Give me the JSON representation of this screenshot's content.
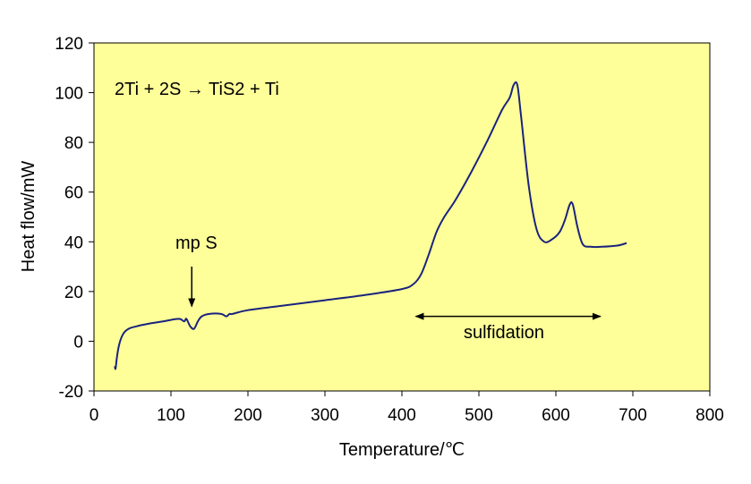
{
  "chart_data": {
    "type": "line",
    "xlabel": "Temperature/℃",
    "ylabel": "Heat flow/mW",
    "xlim": [
      0,
      800
    ],
    "ylim": [
      -20,
      120
    ],
    "x_ticks": [
      0,
      100,
      200,
      300,
      400,
      500,
      600,
      700,
      800
    ],
    "y_ticks": [
      -20,
      0,
      20,
      40,
      60,
      80,
      100,
      120
    ],
    "grid": false,
    "legend": "none",
    "plot_background": "#ffff99",
    "line_color": "#1a237e",
    "series": [
      {
        "x": [
          27,
          28,
          30,
          33,
          38,
          45,
          55,
          70,
          90,
          110,
          117,
          120,
          125,
          130,
          135,
          140,
          150,
          165,
          172,
          176,
          180,
          200,
          250,
          300,
          350,
          400,
          415,
          425,
          435,
          445,
          455,
          470,
          490,
          510,
          530,
          540,
          545,
          550,
          555,
          565,
          575,
          585,
          595,
          605,
          612,
          618,
          622,
          628,
          635,
          645,
          660,
          680,
          692
        ],
        "y": [
          -10,
          -11,
          -6,
          -1,
          3,
          5,
          6,
          7,
          8,
          9,
          8,
          9,
          6,
          5,
          8,
          10,
          11,
          11,
          10,
          11,
          11,
          12.5,
          14.5,
          16.5,
          18.5,
          21,
          23,
          27,
          35,
          44,
          50,
          57,
          68,
          80,
          93,
          98,
          103,
          103,
          90,
          62,
          45,
          40,
          41,
          44,
          49,
          55,
          55,
          46,
          39,
          38,
          38,
          38.5,
          39.5
        ]
      }
    ],
    "annotations": [
      {
        "text": "2Ti + 2S → TiS2 + Ti"
      },
      {
        "text": "mp S",
        "arrow_to": {
          "x": 127,
          "y": 14
        }
      },
      {
        "text": "sulfidation",
        "span_x": [
          418,
          658
        ],
        "span_y": 10
      }
    ]
  }
}
